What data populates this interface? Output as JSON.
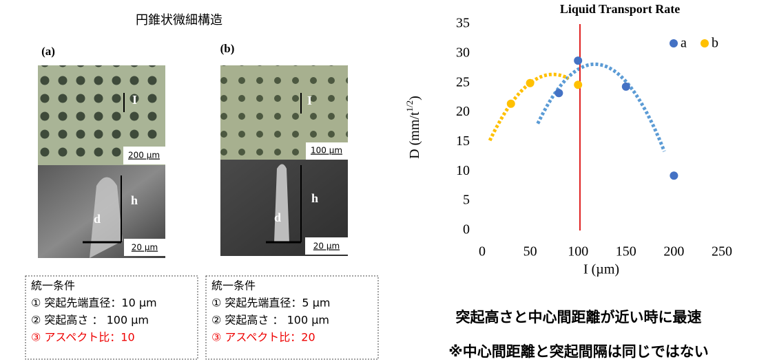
{
  "heading": "円錐状微細構造",
  "panels": [
    {
      "label": "(a)",
      "spacing": "I",
      "scale_top": "200 µm",
      "height": "h",
      "diameter": "d",
      "scale_bottom": "20 µm",
      "conditions": {
        "title": "統一条件",
        "items": [
          "① 突起先端直径：10 µm",
          "② 突起高さ ： 100 µm",
          "③ アスペクト比：10"
        ]
      }
    },
    {
      "label": "(b)",
      "spacing": "I",
      "scale_top": "100 µm",
      "height": "h",
      "diameter": "d",
      "scale_bottom": "20 µm",
      "conditions": {
        "title": "統一条件",
        "items": [
          "① 突起先端直径：5 µm",
          "② 突起高さ ： 100 µm",
          "③ アスペクト比：20"
        ]
      }
    }
  ],
  "notes": [
    "突起高さと中心間距離が近い時に最速",
    "※中心間距離と突起間隔は同じではない"
  ],
  "chart_data": {
    "type": "scatter",
    "title": "Liquid Transport Rate",
    "x_label": "I (µm)",
    "y_label": {
      "text": "D (mm/t",
      "superscript": "1/2",
      "suffix": ")"
    },
    "series": [
      {
        "name": "a",
        "color": "#4472c4",
        "trend_color": "#5b9bd5",
        "x": [
          80,
          100,
          150,
          200
        ],
        "values": [
          23.3,
          28.8,
          24.4,
          9.3
        ]
      },
      {
        "name": "b",
        "color": "#ffc000",
        "trend_color": "#ffc000",
        "x": [
          30,
          50,
          100
        ],
        "values": [
          21.5,
          25,
          24.7
        ]
      }
    ],
    "trendline": {
      "type": "polynomial",
      "order": 2
    },
    "reference_line": {
      "x": 102,
      "color": "#e02020"
    },
    "xlim": [
      0,
      250
    ],
    "xticks": [
      0,
      50,
      100,
      150,
      200,
      250
    ],
    "ylim": [
      0,
      35
    ],
    "yticks": [
      0,
      5,
      10,
      15,
      20,
      25,
      30,
      35
    ],
    "grid": false,
    "legend": "top-right"
  }
}
